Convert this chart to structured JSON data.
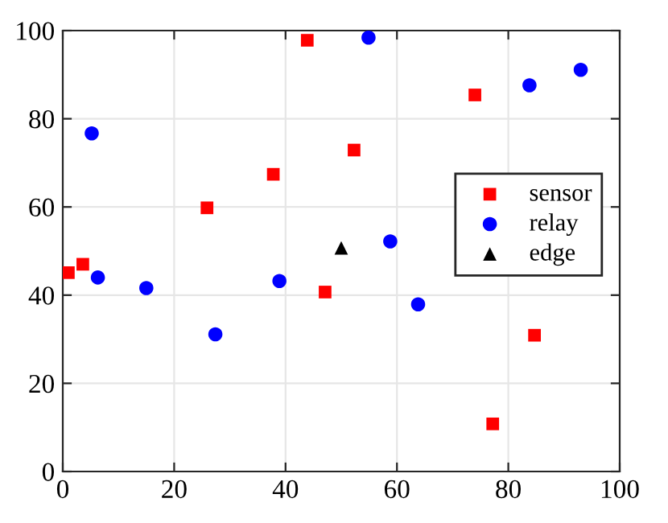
{
  "chart_data": {
    "type": "scatter",
    "xlim": [
      0,
      100
    ],
    "ylim": [
      0,
      100
    ],
    "xticks": [
      0,
      20,
      40,
      60,
      80,
      100
    ],
    "yticks": [
      0,
      20,
      40,
      60,
      80,
      100
    ],
    "grid": true,
    "legend": "right",
    "series": [
      {
        "name": "sensor",
        "color": "#ff0000",
        "marker": "square",
        "x": [
          1.0,
          3.6,
          25.9,
          37.8,
          43.9,
          47.1,
          52.3,
          74.0,
          77.2,
          84.7
        ],
        "values": [
          45.1,
          47.0,
          59.8,
          67.4,
          97.8,
          40.7,
          72.9,
          85.4,
          10.8,
          30.9
        ]
      },
      {
        "name": "relay",
        "color": "#0000ff",
        "marker": "circle",
        "x": [
          5.2,
          6.3,
          15.0,
          27.4,
          38.9,
          54.9,
          58.8,
          63.8,
          83.8,
          93.0
        ],
        "values": [
          76.7,
          44.0,
          41.6,
          31.1,
          43.2,
          98.4,
          52.2,
          37.9,
          87.6,
          91.1
        ]
      },
      {
        "name": "edge",
        "color": "#000000",
        "marker": "triangle",
        "x": [
          50.0
        ],
        "values": [
          50.7
        ]
      }
    ]
  }
}
